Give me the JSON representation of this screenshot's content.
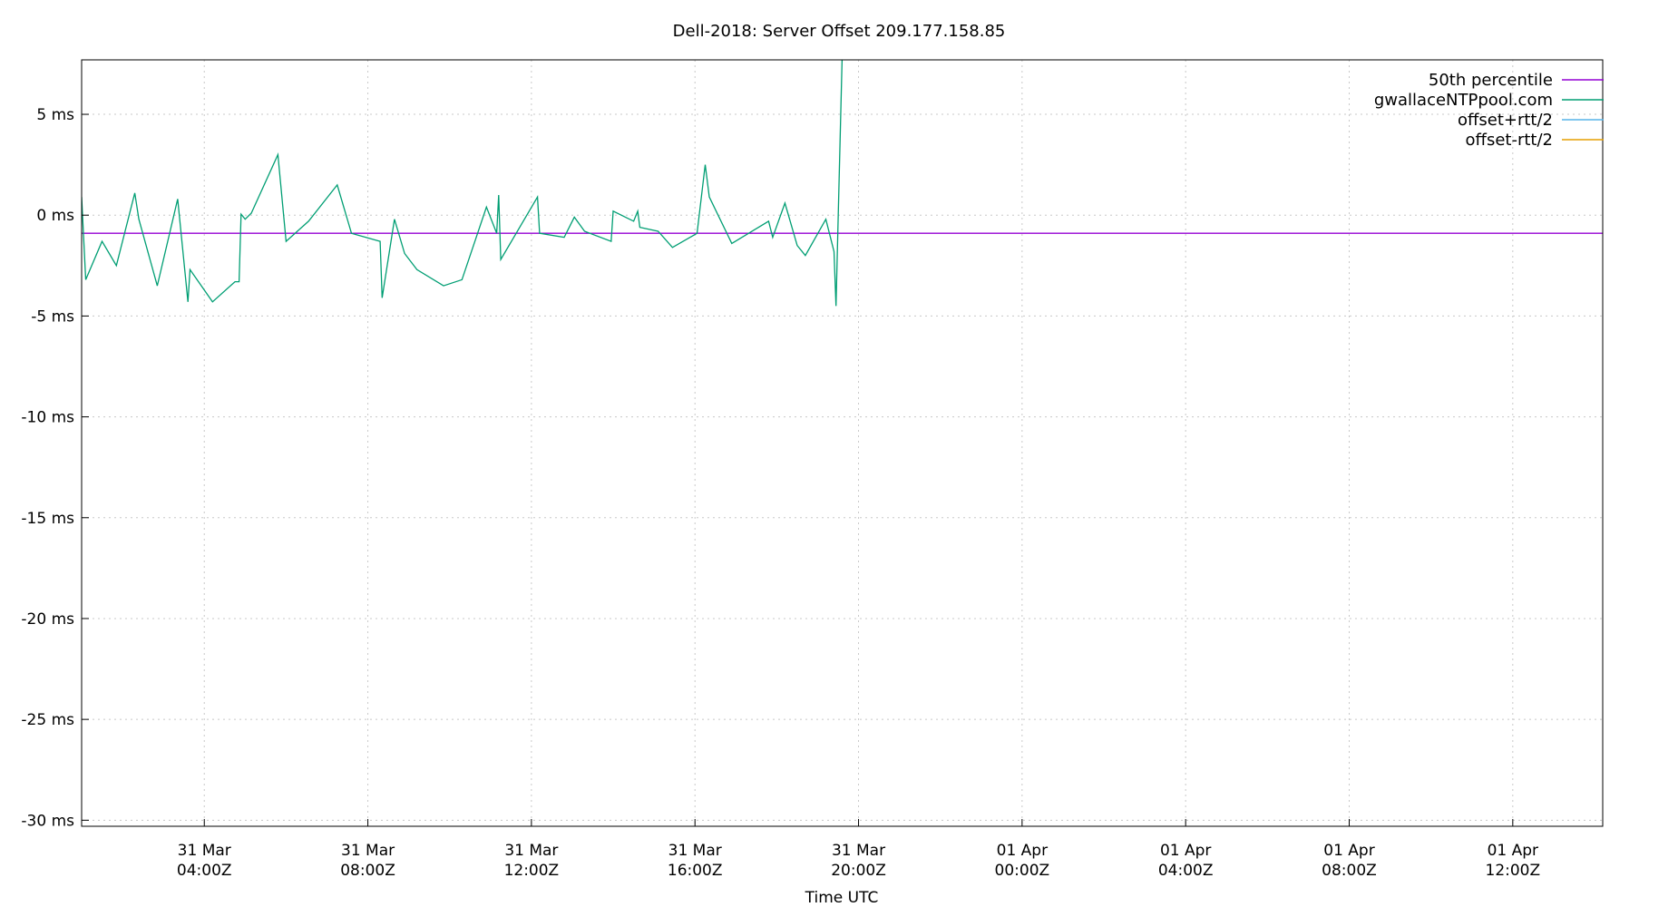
{
  "chart_data": {
    "type": "line",
    "title": "Dell-2018: Server Offset 209.177.158.85",
    "xlabel": "Time UTC",
    "ylabel": "",
    "xlim": [
      1.0,
      19.6
    ],
    "ylim": [
      -30.3,
      7.7
    ],
    "yticks": [
      {
        "v": 5,
        "label": "5 ms"
      },
      {
        "v": 0,
        "label": "0 ms"
      },
      {
        "v": -5,
        "label": "-5 ms"
      },
      {
        "v": -10,
        "label": "-10 ms"
      },
      {
        "v": -15,
        "label": "-15 ms"
      },
      {
        "v": -20,
        "label": "-20 ms"
      },
      {
        "v": -25,
        "label": "-25 ms"
      },
      {
        "v": -30,
        "label": "-30 ms"
      }
    ],
    "xticks": [
      {
        "v": 4,
        "date": "31 Mar",
        "time": "04:00Z"
      },
      {
        "v": 8,
        "date": "31 Mar",
        "time": "08:00Z"
      },
      {
        "v": 12,
        "date": "31 Mar",
        "time": "12:00Z"
      },
      {
        "v": 16,
        "date": "31 Mar",
        "time": "16:00Z"
      },
      {
        "v": 20,
        "date": "31 Mar",
        "time": "20:00Z"
      },
      {
        "v": 24,
        "date": "01 Apr",
        "time": "00:00Z"
      },
      {
        "v": 28,
        "date": "01 Apr",
        "time": "04:00Z"
      },
      {
        "v": 32,
        "date": "01 Apr",
        "time": "08:00Z"
      },
      {
        "v": 36,
        "date": "01 Apr",
        "time": "12:00Z"
      }
    ],
    "grid": true,
    "legend_position": "top-right",
    "series": [
      {
        "name": "50th percentile",
        "color": "#9400d3",
        "points": [
          [
            1.0,
            -0.9
          ],
          [
            38.2,
            -0.9
          ]
        ]
      },
      {
        "name": "gwallaceNTPpool.com",
        "color": "#009e73",
        "points": [
          [
            1.0,
            0.9
          ],
          [
            1.1,
            -3.2
          ],
          [
            1.5,
            -1.3
          ],
          [
            1.85,
            -2.5
          ],
          [
            2.3,
            1.1
          ],
          [
            2.4,
            -0.2
          ],
          [
            2.85,
            -3.5
          ],
          [
            3.35,
            0.8
          ],
          [
            3.6,
            -4.3
          ],
          [
            3.65,
            -2.7
          ],
          [
            4.2,
            -4.3
          ],
          [
            4.75,
            -3.3
          ],
          [
            4.85,
            -3.3
          ],
          [
            4.9,
            0.05
          ],
          [
            5.0,
            -0.2
          ],
          [
            5.15,
            0.1
          ],
          [
            5.8,
            3.0
          ],
          [
            6.0,
            -1.3
          ],
          [
            6.55,
            -0.3
          ],
          [
            7.25,
            1.5
          ],
          [
            7.6,
            -0.9
          ],
          [
            8.3,
            -1.3
          ],
          [
            8.35,
            -4.1
          ],
          [
            8.65,
            -0.2
          ],
          [
            8.9,
            -1.9
          ],
          [
            9.2,
            -2.7
          ],
          [
            9.85,
            -3.5
          ],
          [
            10.3,
            -3.2
          ],
          [
            10.9,
            0.4
          ],
          [
            11.15,
            -0.9
          ],
          [
            11.2,
            1.0
          ],
          [
            11.25,
            -2.2
          ],
          [
            12.15,
            0.9
          ],
          [
            12.2,
            -0.9
          ],
          [
            12.8,
            -1.1
          ],
          [
            13.05,
            -0.1
          ],
          [
            13.3,
            -0.8
          ],
          [
            13.95,
            -1.3
          ],
          [
            14.0,
            0.2
          ],
          [
            14.5,
            -0.3
          ],
          [
            14.6,
            0.2
          ],
          [
            14.65,
            -0.6
          ],
          [
            15.1,
            -0.8
          ],
          [
            15.45,
            -1.6
          ],
          [
            16.05,
            -0.9
          ],
          [
            16.25,
            2.5
          ],
          [
            16.35,
            0.9
          ],
          [
            16.9,
            -1.4
          ],
          [
            17.8,
            -0.3
          ],
          [
            17.9,
            -1.1
          ],
          [
            18.2,
            0.6
          ],
          [
            18.5,
            -1.5
          ],
          [
            18.7,
            -2.0
          ],
          [
            19.2,
            -0.2
          ],
          [
            19.4,
            -1.8
          ],
          [
            19.45,
            -4.5
          ],
          [
            19.6,
            7.9
          ]
        ]
      },
      {
        "name": "offset+rtt/2",
        "color": "#56b4e9",
        "points": []
      },
      {
        "name": "offset-rtt/2",
        "color": "#e69f00",
        "points": []
      }
    ]
  }
}
